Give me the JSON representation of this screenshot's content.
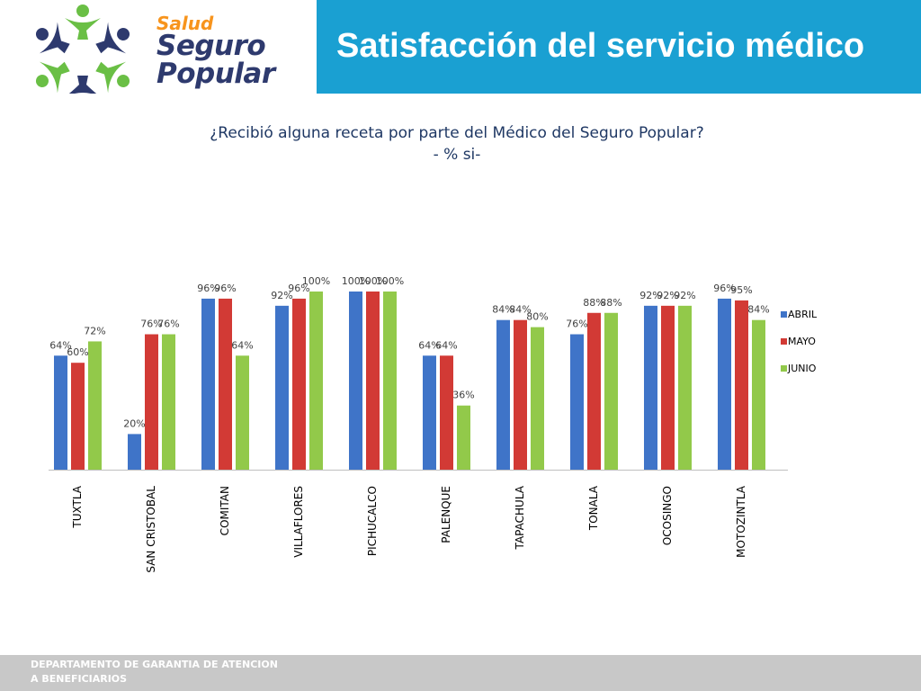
{
  "logo": {
    "salud": "Salud",
    "seguro": "Seguro",
    "popular": "Popular",
    "colors": {
      "navy": "#2e3a6e",
      "green": "#6abf45",
      "orange": "#f7941d"
    }
  },
  "header": {
    "title": "Satisfacción del servicio médico",
    "bar_color": "#1aa0d2"
  },
  "footer": {
    "line1": "DEPARTAMENTO DE GARANTIA DE ATENCION",
    "line2": "A BENEFICIARIOS"
  },
  "chart_data": {
    "type": "bar",
    "title": "¿Recibió alguna receta por parte del Médico del Seguro Popular?",
    "subtitle": "- %  si-",
    "xlabel": "",
    "ylabel": "",
    "ylim": [
      0,
      100
    ],
    "grid": false,
    "legend_position": "right",
    "categories": [
      "TUXTLA",
      "SAN CRISTOBAL",
      "COMITAN",
      "VILLAFLORES",
      "PICHUCALCO",
      "PALENQUE",
      "TAPACHULA",
      "TONALA",
      "OCOSINGO",
      "MOTOZINTLA"
    ],
    "series": [
      {
        "name": "ABRIL",
        "color": "#3f74c8",
        "values": [
          64,
          20,
          96,
          92,
          100,
          64,
          84,
          76,
          92,
          96
        ]
      },
      {
        "name": "MAYO",
        "color": "#d23a35",
        "values": [
          60,
          76,
          96,
          96,
          100,
          64,
          84,
          88,
          92,
          95
        ]
      },
      {
        "name": "JUNIO",
        "color": "#92c94a",
        "values": [
          72,
          76,
          64,
          100,
          100,
          36,
          80,
          88,
          92,
          84
        ]
      }
    ]
  }
}
